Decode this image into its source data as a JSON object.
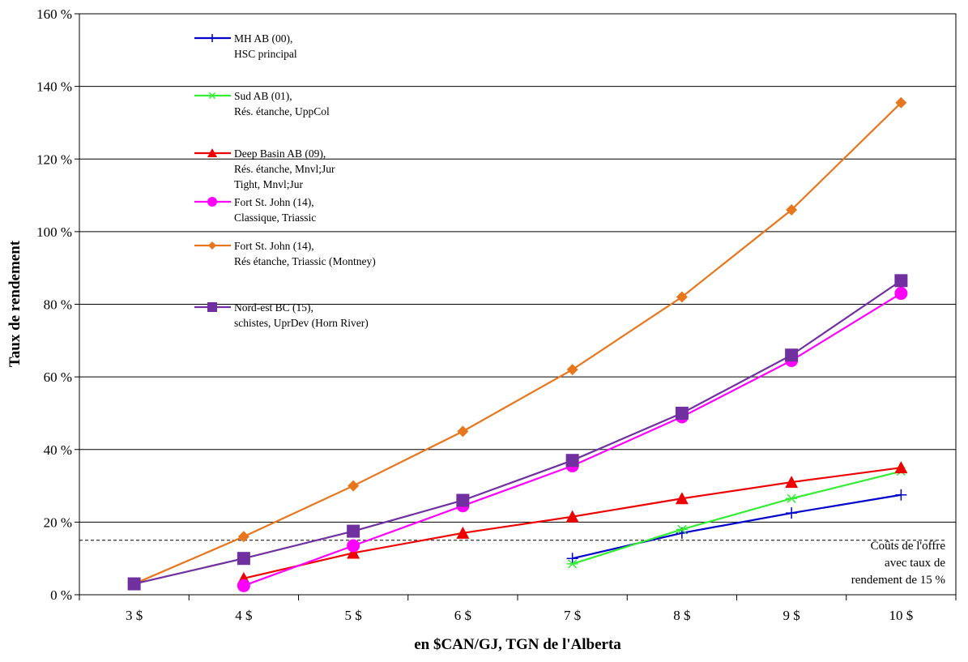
{
  "chart_data": {
    "type": "line",
    "xlabel": "en $CAN/GJ, TGN de l'Alberta",
    "ylabel": "Taux de rendement",
    "categories": [
      "3 $",
      "4 $",
      "5 $",
      "6 $",
      "7 $",
      "8 $",
      "9 $",
      "10 $"
    ],
    "y_tick_labels": [
      "0 %",
      "20 %",
      "40 %",
      "60 %",
      "80 %",
      "100 %",
      "120 %",
      "140 %",
      "160 %"
    ],
    "ylim": [
      0,
      160
    ],
    "y_unit": "%",
    "grid": "horizontal",
    "legend_position": "top-left",
    "threshold": {
      "value": 15,
      "style": "dashed",
      "label_lines": [
        "Coûts de l'offre",
        "avec taux de",
        "rendement de 15 %"
      ]
    },
    "series": [
      {
        "name_lines": [
          "MH AB (00),",
          "HSC principal"
        ],
        "color": "#0000cc",
        "marker": "plus",
        "values": [
          null,
          null,
          null,
          null,
          10,
          17,
          22.5,
          27.5
        ]
      },
      {
        "name_lines": [
          "Sud AB (01),",
          "Rés. étanche,  UppCol"
        ],
        "color": "#33ee33",
        "marker": "star",
        "values": [
          null,
          null,
          null,
          null,
          8.5,
          18,
          26.5,
          34
        ]
      },
      {
        "name_lines": [
          "Deep Basin AB (09),",
          "Rés. étanche,  Mnvl;Jur",
          "Tight,  Mnvl;Jur"
        ],
        "color": "#ee0000",
        "marker": "triangle",
        "values": [
          null,
          4.5,
          11.5,
          17,
          21.5,
          26.5,
          31,
          35
        ]
      },
      {
        "name_lines": [
          "Fort St. John (14),",
          "Classique,  Triassic"
        ],
        "color": "#ff00ff",
        "marker": "circle",
        "values": [
          null,
          2.5,
          13.5,
          24.5,
          35.5,
          49,
          64.5,
          83
        ]
      },
      {
        "name_lines": [
          "Fort St. John (14),",
          "Rés étanche,  Triassic  (Montney)"
        ],
        "color": "#e8761c",
        "marker": "diamond",
        "values": [
          3,
          16,
          30,
          45,
          62,
          82,
          106,
          135.5
        ]
      },
      {
        "name_lines": [
          "Nord-est BC (15),",
          "schistes,  UprDev (Horn River)"
        ],
        "color": "#7030a0",
        "marker": "square",
        "values": [
          3,
          10,
          17.5,
          26,
          37,
          50,
          66,
          86.5
        ]
      }
    ]
  }
}
